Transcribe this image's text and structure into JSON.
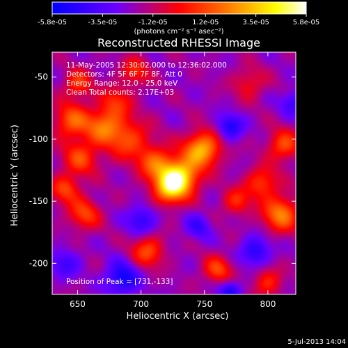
{
  "chart_data": {
    "type": "heatmap",
    "title": "Reconstructed RHESSI Image",
    "xlabel": "Heliocentric X (arcsec)",
    "ylabel": "Heliocentric Y (arcsec)",
    "xlim": [
      630,
      822
    ],
    "ylim": [
      -225,
      -30
    ],
    "xticks": [
      "650",
      "700",
      "750",
      "800"
    ],
    "xtick_values": [
      650,
      700,
      750,
      800
    ],
    "yticks": [
      "-50",
      "-100",
      "-150",
      "-200"
    ],
    "ytick_values": [
      -50,
      -100,
      -150,
      -200
    ],
    "colorbar": {
      "range": [
        -5.8e-05,
        5.8e-05
      ],
      "ticks": [
        "-5.8e-05",
        "-3.5e-05",
        "-1.2e-05",
        "1.2e-05",
        "3.5e-05",
        "5.8e-05"
      ],
      "tick_values": [
        -5.8e-05,
        -3.5e-05,
        -1.2e-05,
        1.2e-05,
        3.5e-05,
        5.8e-05
      ],
      "label": "(photons cm⁻² s⁻¹ asec⁻²)",
      "colors": [
        "#0000ff",
        "#6a00ff",
        "#ff0000",
        "#ff8000",
        "#ffff00",
        "#ffffff"
      ]
    },
    "peak": [
      731,
      -133
    ],
    "sources": [
      {
        "x": 731,
        "y": -130,
        "amp": 5.8e-05,
        "r": 10
      },
      {
        "x": 748,
        "y": -108,
        "amp": 5.2e-05,
        "r": 10
      },
      {
        "x": 722,
        "y": -140,
        "amp": 4.5e-05,
        "r": 9
      },
      {
        "x": 712,
        "y": -120,
        "amp": 3.5e-05,
        "r": 10
      },
      {
        "x": 690,
        "y": -100,
        "amp": 3e-05,
        "r": 12
      },
      {
        "x": 670,
        "y": -90,
        "amp": 3.5e-05,
        "r": 10
      },
      {
        "x": 645,
        "y": -85,
        "amp": 3.5e-05,
        "r": 10
      },
      {
        "x": 652,
        "y": -115,
        "amp": 3e-05,
        "r": 10
      },
      {
        "x": 680,
        "y": -70,
        "amp": 2.5e-05,
        "r": 9
      },
      {
        "x": 650,
        "y": -55,
        "amp": 2.8e-05,
        "r": 8
      },
      {
        "x": 695,
        "y": -45,
        "amp": 2.5e-05,
        "r": 8
      },
      {
        "x": 655,
        "y": -160,
        "amp": 3e-05,
        "r": 9
      },
      {
        "x": 640,
        "y": -140,
        "amp": 3e-05,
        "r": 8
      },
      {
        "x": 705,
        "y": -190,
        "amp": 3.2e-05,
        "r": 9
      },
      {
        "x": 810,
        "y": -160,
        "amp": 4.2e-05,
        "r": 10
      },
      {
        "x": 795,
        "y": -135,
        "amp": 3e-05,
        "r": 9
      },
      {
        "x": 812,
        "y": -105,
        "amp": 3.2e-05,
        "r": 9
      },
      {
        "x": 775,
        "y": -150,
        "amp": 2.5e-05,
        "r": 8
      },
      {
        "x": 760,
        "y": -205,
        "amp": 3e-05,
        "r": 8
      },
      {
        "x": 800,
        "y": -215,
        "amp": 2.5e-05,
        "r": 8
      },
      {
        "x": 785,
        "y": -55,
        "amp": 2e-05,
        "r": 9
      },
      {
        "x": 685,
        "y": -212,
        "amp": -3.5e-05,
        "r": 9
      },
      {
        "x": 770,
        "y": -90,
        "amp": -3e-05,
        "r": 7
      },
      {
        "x": 790,
        "y": -190,
        "amp": -2.8e-05,
        "r": 8
      },
      {
        "x": 700,
        "y": -165,
        "amp": -2.5e-05,
        "r": 8
      },
      {
        "x": 820,
        "y": -70,
        "amp": -2.2e-05,
        "r": 7
      },
      {
        "x": 770,
        "y": -222,
        "amp": -3e-05,
        "r": 6
      },
      {
        "x": 640,
        "y": -200,
        "amp": -2e-05,
        "r": 8
      },
      {
        "x": 745,
        "y": -170,
        "amp": -2e-05,
        "r": 7
      }
    ]
  },
  "annotations": {
    "time_range": "11-May-2005 12:30:02.000 to 12:36:02.000",
    "detectors": "Detectors: 4F 5F 6F 7F 8F, Att 0",
    "energy_range": "Energy Range: 12.0 - 25.0 keV",
    "method_counts": "Clean     Total counts: 2.17E+03",
    "peak_label": "Position of Peak = [731,-133]"
  },
  "timestamp": "5-Jul-2013 14:04"
}
